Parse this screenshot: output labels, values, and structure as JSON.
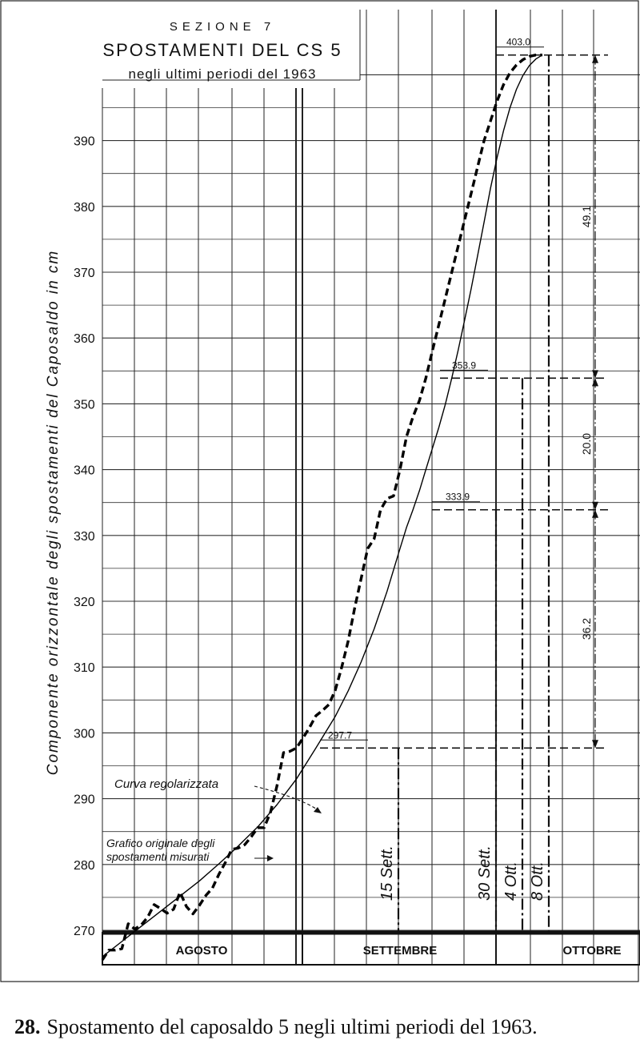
{
  "chart_data": {
    "type": "line",
    "title_lines": [
      "SEZIONE 7",
      "SPOSTAMENTI DEL CS 5",
      "negli ultimi periodi del 1963"
    ],
    "ylabel": "Componente orizzontale degli spostamenti del Caposaldo in cm",
    "xlabel": "",
    "ylim": [
      265,
      405
    ],
    "yticks": [
      270,
      280,
      290,
      300,
      310,
      320,
      330,
      340,
      350,
      360,
      370,
      380,
      390
    ],
    "xlim": [
      0,
      69
    ],
    "grid": true,
    "months": [
      "AGOSTO",
      "SETTEMBRE",
      "OTTOBRE"
    ],
    "series": [
      {
        "name": "Curva regolarizzata",
        "style": "solid",
        "x": [
          0,
          3,
          6,
          9,
          12,
          15,
          18,
          21,
          24,
          27,
          30,
          33,
          36,
          38,
          40,
          42,
          44,
          46,
          47,
          48,
          49,
          50,
          51,
          52,
          53,
          54,
          55,
          56,
          57,
          58,
          59,
          60,
          61,
          62,
          63,
          64,
          65,
          66,
          67,
          68
        ],
        "y": [
          266,
          268.3,
          270.6,
          272.9,
          275.2,
          277.5,
          280.1,
          282.8,
          285.7,
          289.1,
          293.0,
          297.7,
          302.5,
          306.4,
          310.8,
          315.8,
          321.5,
          328.0,
          331.2,
          333.9,
          336.8,
          340.0,
          343.2,
          346.4,
          349.9,
          353.9,
          358.2,
          362.8,
          367.5,
          372.5,
          377.6,
          382.8,
          387.4,
          391.5,
          395.0,
          397.8,
          399.9,
          401.4,
          402.4,
          403.0
        ]
      },
      {
        "name": "Grafico originale degli spostamenti misurati",
        "style": "dashed",
        "x": [
          0,
          1,
          2,
          3,
          4,
          5,
          6,
          7,
          8,
          9,
          10,
          11,
          12,
          13,
          14,
          15,
          16,
          17,
          18,
          19,
          20,
          21,
          22,
          23,
          24,
          25,
          26,
          27,
          28,
          29,
          30,
          31,
          32,
          33,
          34,
          35,
          36,
          37,
          38,
          39,
          40,
          41,
          42,
          43,
          44,
          45,
          46,
          47,
          48,
          49,
          50,
          51,
          52,
          53,
          54,
          55,
          56,
          57,
          58,
          59,
          60,
          61,
          62,
          63,
          64,
          65,
          66,
          67,
          68
        ],
        "y": [
          265.5,
          267,
          267,
          267.2,
          271,
          270.2,
          270.8,
          272,
          273.9,
          273.3,
          272.6,
          273.2,
          275.8,
          273.6,
          272.5,
          273.8,
          275.3,
          276.4,
          278.5,
          280.3,
          282.3,
          282.5,
          283.0,
          284.2,
          285.6,
          285.6,
          288.0,
          292.0,
          297.0,
          297.2,
          297.7,
          299.2,
          300.8,
          302.6,
          303.4,
          304.3,
          306.5,
          310.0,
          314.0,
          319.0,
          323.5,
          328.0,
          329.5,
          333.9,
          335.6,
          336.0,
          340.0,
          345.0,
          348.0,
          350.5,
          353.9,
          358.0,
          362.0,
          366.0,
          370.0,
          374.0,
          378.0,
          382.0,
          386.0,
          390.0,
          393.0,
          396.0,
          398.5,
          400.3,
          401.5,
          402.3,
          402.8,
          403.0,
          403.0
        ]
      }
    ],
    "reference_levels": [
      {
        "label": "297.7",
        "value": 297.7
      },
      {
        "label": "333.9",
        "value": 333.9
      },
      {
        "label": "353.9",
        "value": 353.9
      },
      {
        "label": "403.0",
        "value": 403.0
      }
    ],
    "intervals": [
      {
        "label": "36.2",
        "from": 297.7,
        "to": 333.9
      },
      {
        "label": "20.0",
        "from": 333.9,
        "to": 353.9
      },
      {
        "label": "49.1",
        "from": 353.9,
        "to": 403.0
      }
    ],
    "date_markers": [
      {
        "num": "15",
        "label": "Sett."
      },
      {
        "num": "30",
        "label": "Sett."
      },
      {
        "num": "4",
        "label": "Ott."
      },
      {
        "num": "8",
        "label": "Ott."
      }
    ],
    "annotations": [
      "Curva regolarizzata",
      "Grafico originale degli",
      "spostamenti misurati"
    ]
  },
  "caption": {
    "number": "28.",
    "text": "Spostamento del caposaldo 5 negli ultimi periodi del 1963."
  }
}
